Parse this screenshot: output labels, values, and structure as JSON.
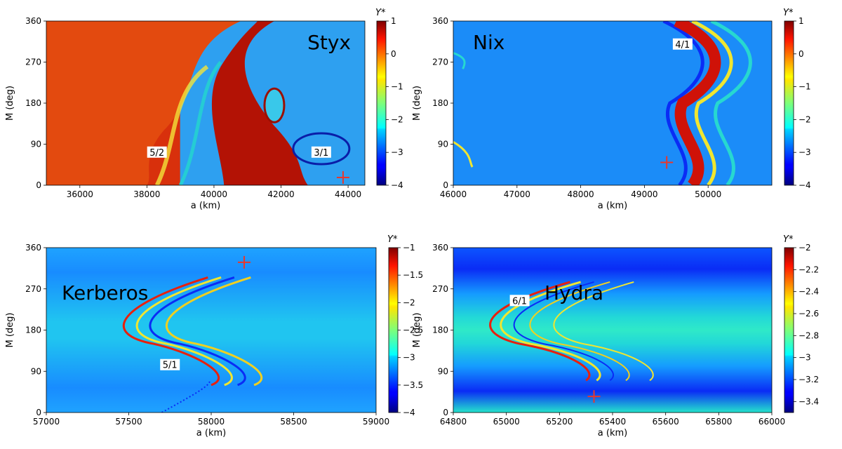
{
  "chart_data": [
    {
      "type": "heatmap",
      "title": "Styx",
      "xlabel": "a (km)",
      "ylabel": "M (deg)",
      "xlim": [
        35000,
        44500
      ],
      "ylim": [
        0,
        360
      ],
      "xticks": [
        36000,
        38000,
        40000,
        42000,
        44000
      ],
      "yticks": [
        0,
        90,
        180,
        270,
        360
      ],
      "colorbar": {
        "label": "Y*",
        "range": [
          -4,
          1
        ],
        "ticks": [
          1,
          0,
          -1,
          -2,
          -3,
          -4
        ]
      },
      "annotations": [
        {
          "text": "5/2",
          "x": 38300,
          "y": 68
        },
        {
          "text": "3/1",
          "x": 43200,
          "y": 68
        }
      ],
      "marker": {
        "symbol": "+",
        "color": "#e8372c",
        "x": 43850,
        "y": 17
      }
    },
    {
      "type": "heatmap",
      "title": "Nix",
      "xlabel": "a (km)",
      "ylabel": "M (deg)",
      "xlim": [
        46000,
        51000
      ],
      "ylim": [
        0,
        360
      ],
      "xticks": [
        46000,
        47000,
        48000,
        49000,
        50000
      ],
      "yticks": [
        0,
        90,
        180,
        270,
        360
      ],
      "colorbar": {
        "label": "Y*",
        "range": [
          -4,
          1
        ],
        "ticks": [
          1,
          0,
          -1,
          -2,
          -3,
          -4
        ]
      },
      "annotations": [
        {
          "text": "4/1",
          "x": 49600,
          "y": 305
        }
      ],
      "marker": {
        "symbol": "+",
        "color": "#e8372c",
        "x": 49350,
        "y": 50
      }
    },
    {
      "type": "heatmap",
      "title": "Kerberos",
      "xlabel": "a (km)",
      "ylabel": "M (deg)",
      "xlim": [
        57000,
        59000
      ],
      "ylim": [
        0,
        360
      ],
      "xticks": [
        57000,
        57500,
        58000,
        58500,
        59000
      ],
      "yticks": [
        0,
        90,
        180,
        270,
        360
      ],
      "colorbar": {
        "label": "Y*",
        "range": [
          -4.0,
          -1.0
        ],
        "ticks": [
          -1.0,
          -1.5,
          -2.0,
          -2.5,
          -3.0,
          -3.5,
          -4.0
        ]
      },
      "annotations": [
        {
          "text": "5/1",
          "x": 57750,
          "y": 100
        }
      ],
      "marker": {
        "symbol": "+",
        "color": "#e8372c",
        "x": 58200,
        "y": 328
      }
    },
    {
      "type": "heatmap",
      "title": "Hydra",
      "xlabel": "a (km)",
      "ylabel": "M (deg)",
      "xlim": [
        64800,
        66000
      ],
      "ylim": [
        0,
        360
      ],
      "xticks": [
        64800,
        65000,
        65200,
        65400,
        65600,
        65800,
        66000
      ],
      "yticks": [
        0,
        90,
        180,
        270,
        360
      ],
      "colorbar": {
        "label": "Y*",
        "range": [
          -3.5,
          -2.0
        ],
        "ticks": [
          -2.0,
          -2.2,
          -2.4,
          -2.6,
          -2.8,
          -3.0,
          -3.2,
          -3.4
        ]
      },
      "annotations": [
        {
          "text": "6/1",
          "x": 65050,
          "y": 240
        }
      ],
      "marker": {
        "symbol": "+",
        "color": "#e8372c",
        "x": 65330,
        "y": 35
      }
    }
  ]
}
